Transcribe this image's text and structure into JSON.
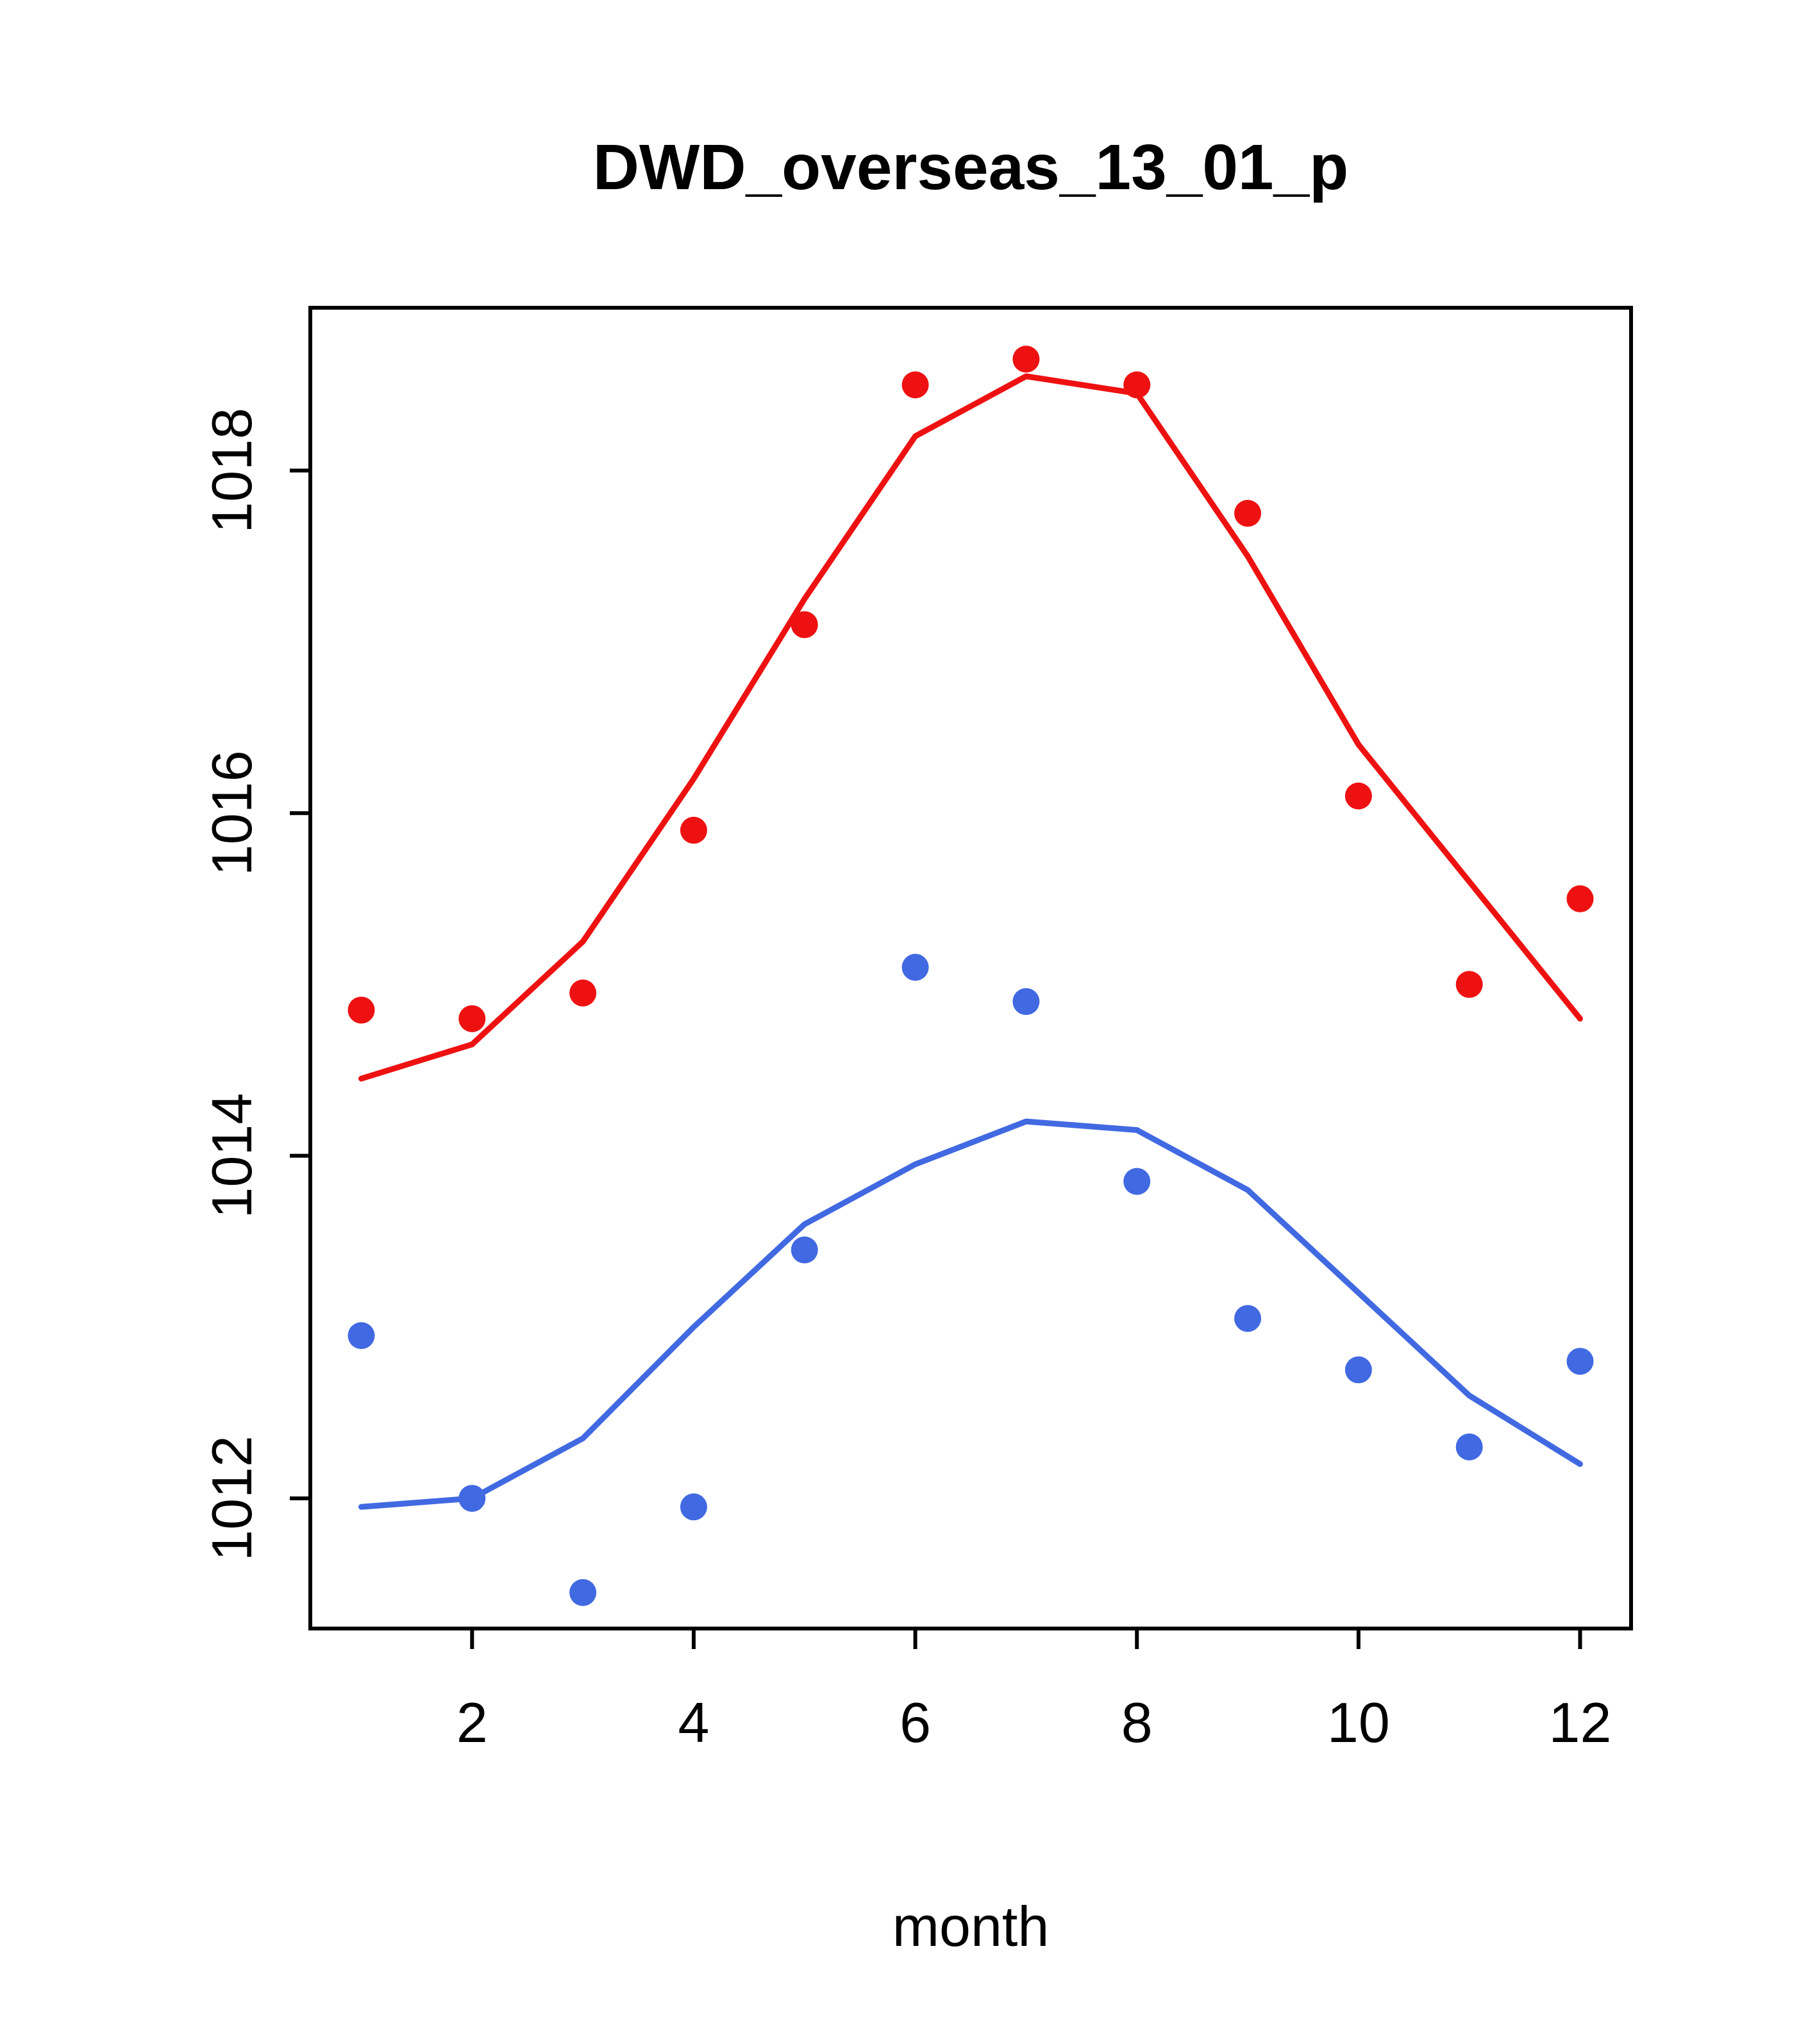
{
  "chart_data": {
    "type": "line",
    "title": "DWD_overseas_13_01_p",
    "xlabel": "month",
    "ylabel": "",
    "x": [
      1,
      2,
      3,
      4,
      5,
      6,
      7,
      8,
      9,
      10,
      11,
      12
    ],
    "xlim": [
      0.54,
      12.46
    ],
    "ylim": [
      1011.24,
      1018.95
    ],
    "xticks": [
      2,
      4,
      6,
      8,
      10,
      12
    ],
    "yticks": [
      1012,
      1014,
      1016,
      1018
    ],
    "grid": false,
    "legend": "none",
    "colors": {
      "red": "#ee1111",
      "blue": "#4169e1"
    },
    "series": [
      {
        "name": "red-observed-points",
        "style": "scatter",
        "color": "#ee1111",
        "values": [
          1014.85,
          1014.8,
          1014.95,
          1015.9,
          1017.1,
          1018.5,
          1018.65,
          1018.5,
          1017.75,
          1016.1,
          1015.0,
          1015.5
        ]
      },
      {
        "name": "red-fitted-line",
        "style": "line",
        "color": "#ee1111",
        "values": [
          1014.45,
          1014.65,
          1015.25,
          1016.2,
          1017.25,
          1018.2,
          1018.55,
          1018.45,
          1017.5,
          1016.4,
          1015.6,
          1014.8
        ]
      },
      {
        "name": "blue-observed-points",
        "style": "scatter",
        "color": "#4169e1",
        "values": [
          1012.95,
          1012.0,
          1011.45,
          1011.95,
          1013.45,
          1015.1,
          1014.9,
          1013.85,
          1013.05,
          1012.75,
          1012.3,
          1012.8
        ]
      },
      {
        "name": "blue-fitted-line",
        "style": "line",
        "color": "#4169e1",
        "values": [
          1011.95,
          1012.0,
          1012.35,
          1013.0,
          1013.6,
          1013.95,
          1014.2,
          1014.15,
          1013.8,
          1013.2,
          1012.6,
          1012.2
        ]
      }
    ]
  }
}
